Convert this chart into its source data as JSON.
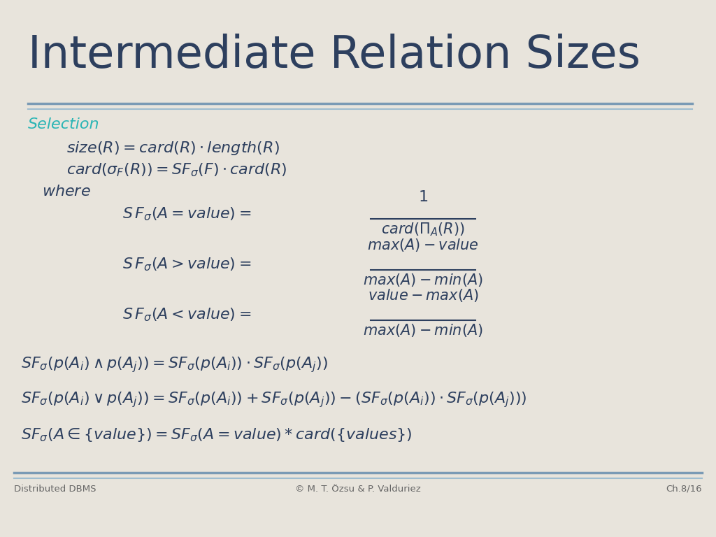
{
  "title": "Intermediate Relation Sizes",
  "title_color": "#2d3f5e",
  "background_color": "#e8e4dc",
  "separator_color1": "#7a9ab5",
  "separator_color2": "#9fbdd0",
  "selection_label": "Selection",
  "selection_color": "#2ab5b5",
  "footer_left": "Distributed DBMS",
  "footer_center": "© M. T. Özsu & P. Valduriez",
  "footer_right": "Ch.8/16",
  "footer_color": "#666666",
  "text_color": "#2d3f5e"
}
